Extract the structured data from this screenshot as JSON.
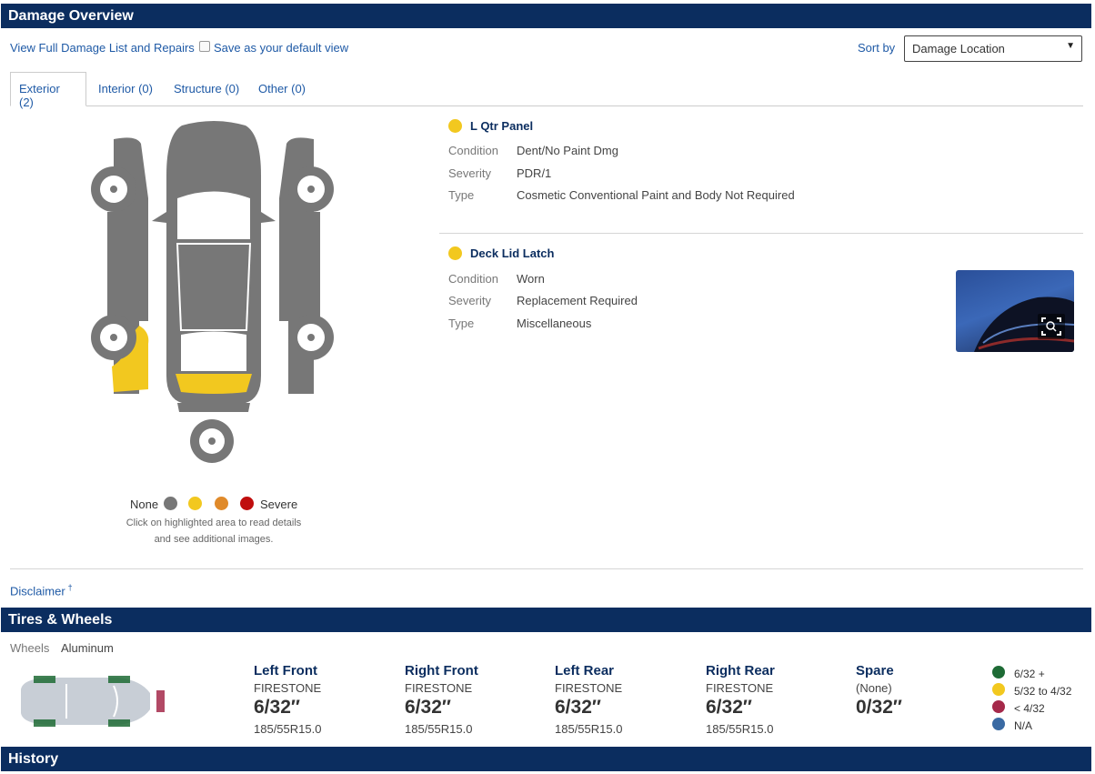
{
  "damage_overview": {
    "title": "Damage Overview",
    "view_full_link": "View Full Damage List and Repairs",
    "save_default_label": "Save as your default view",
    "sort_by_label": "Sort by",
    "sort_by_value": "Damage Location",
    "tabs": [
      {
        "label": "Exterior (2)",
        "active": true
      },
      {
        "label": "Interior (0)",
        "active": false
      },
      {
        "label": "Structure (0)",
        "active": false
      },
      {
        "label": "Other (0)",
        "active": false
      }
    ],
    "legend": {
      "none_label": "None",
      "severe_label": "Severe",
      "colors": [
        "#777777",
        "#f2c81f",
        "#e08a2a",
        "#c00d0d"
      ],
      "hint_line1": "Click on highlighted area to read details",
      "hint_line2": "and see additional images."
    },
    "items": [
      {
        "title": "L Qtr Panel",
        "color": "#f2c81f",
        "condition_label": "Condition",
        "condition": "Dent/No Paint Dmg",
        "severity_label": "Severity",
        "severity": "PDR/1",
        "type_label": "Type",
        "type": "Cosmetic Conventional Paint and Body Not Required"
      },
      {
        "title": "Deck Lid Latch",
        "color": "#f2c81f",
        "condition_label": "Condition",
        "condition": "Worn",
        "severity_label": "Severity",
        "severity": "Replacement Required",
        "type_label": "Type",
        "type": "Miscellaneous"
      }
    ],
    "disclaimer": "Disclaimer",
    "disclaimer_mark": "†"
  },
  "tires_wheels": {
    "title": "Tires & Wheels",
    "wheels_label": "Wheels",
    "wheels_value": "Aluminum",
    "tires": [
      {
        "position": "Left Front",
        "brand": "FIRESTONE",
        "depth": "6/32″",
        "size": "185/55R15.0"
      },
      {
        "position": "Right Front",
        "brand": "FIRESTONE",
        "depth": "6/32″",
        "size": "185/55R15.0"
      },
      {
        "position": "Left Rear",
        "brand": "FIRESTONE",
        "depth": "6/32″",
        "size": "185/55R15.0"
      },
      {
        "position": "Right Rear",
        "brand": "FIRESTONE",
        "depth": "6/32″",
        "size": "185/55R15.0"
      },
      {
        "position": "Spare",
        "brand": "(None)",
        "depth": "0/32″",
        "size": ""
      }
    ],
    "legend": [
      {
        "label": "6/32 +",
        "color": "#1e6b35"
      },
      {
        "label": "5/32 to 4/32",
        "color": "#f2c81f"
      },
      {
        "label": "< 4/32",
        "color": "#a5294a"
      },
      {
        "label": "N/A",
        "color": "#3a6aa3"
      }
    ]
  },
  "history": {
    "title": "History"
  }
}
